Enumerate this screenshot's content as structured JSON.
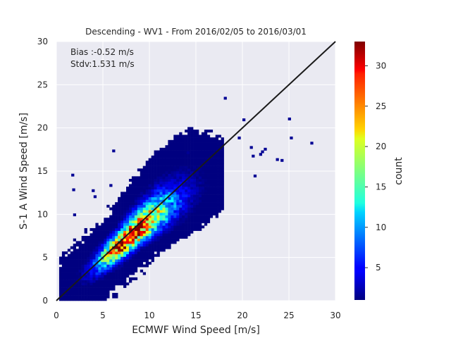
{
  "chart_data": {
    "type": "heatmap",
    "title": "Descending - WV1 - From 2016/02/05 to 2016/03/01",
    "xlabel": "ECMWF Wind Speed [m/s]",
    "ylabel": "S-1 A Wind Speed [m/s]",
    "xlim": [
      0,
      30
    ],
    "ylim": [
      0,
      30
    ],
    "xticks": [
      "0",
      "5",
      "10",
      "15",
      "20",
      "25",
      "30"
    ],
    "yticks": [
      "0",
      "5",
      "10",
      "15",
      "20",
      "25",
      "30"
    ],
    "grid": true,
    "bin_size": 0.3,
    "stats": [
      "Bias :-0.52 m/s",
      "Stdv:1.531 m/s"
    ],
    "reference_line": {
      "from": [
        0,
        0
      ],
      "to": [
        30,
        30
      ],
      "color": "#1a1a1a"
    },
    "colorbar": {
      "label": "count",
      "range": [
        1,
        33
      ],
      "ticks": [
        "5",
        "10",
        "15",
        "20",
        "25",
        "30"
      ],
      "colormap": "jet"
    },
    "density_model": {
      "center_x": 7.5,
      "center_y": 7.0,
      "peak_count": 33,
      "std_along_diagonal": 2.8,
      "std_across_diagonal": 0.75,
      "x_range_of_dense_cloud": [
        0.3,
        18
      ],
      "sparse_outliers": [
        [
          1.6,
          14.4
        ],
        [
          1.7,
          12.7
        ],
        [
          1.8,
          9.8
        ],
        [
          6,
          17.2
        ],
        [
          14,
          17
        ],
        [
          18,
          23.3
        ],
        [
          20,
          20.8
        ],
        [
          24.9,
          20.9
        ],
        [
          25.1,
          18.7
        ],
        [
          27.3,
          18.1
        ],
        [
          22,
          17.1
        ],
        [
          23.6,
          16.2
        ],
        [
          21.2,
          14.3
        ],
        [
          24.1,
          16.1
        ],
        [
          21,
          16.6
        ],
        [
          19.5,
          18.7
        ],
        [
          20.8,
          17.6
        ],
        [
          21.8,
          16.8
        ],
        [
          22.3,
          17.4
        ],
        [
          4,
          11.9
        ],
        [
          3.8,
          12.6
        ],
        [
          5.7,
          13.2
        ]
      ]
    },
    "background": "#eaeaf2",
    "grid_color": "#ffffff"
  }
}
